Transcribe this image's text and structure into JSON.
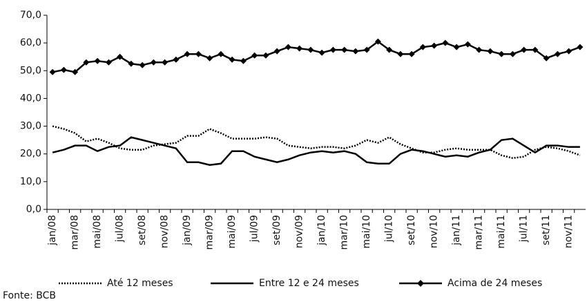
{
  "chart_data": {
    "type": "line",
    "categories": [
      "jan/08",
      null,
      "mar/08",
      null,
      "mai/08",
      null,
      "jul/08",
      null,
      "set/08",
      null,
      "nov/08",
      null,
      "jan/09",
      null,
      "mar/09",
      null,
      "mai/09",
      null,
      "jul/09",
      null,
      "set/09",
      null,
      "nov/09",
      null,
      "jan/10",
      null,
      "mar/10",
      null,
      "mai/10",
      null,
      "jul/10",
      null,
      "set/10",
      null,
      "nov/10",
      null,
      "jan/11",
      null,
      "mar/11",
      null,
      "mai/11",
      null,
      "jul/11",
      null,
      "set/11",
      null,
      "nov/11",
      null
    ],
    "series": [
      {
        "name": "Até 12 meses",
        "color": "#000000",
        "style": "dotted",
        "values": [
          30,
          29,
          27.5,
          24.5,
          25.5,
          24,
          22,
          21.5,
          21.5,
          23,
          23.5,
          24,
          26.5,
          26.5,
          29,
          27.5,
          25.5,
          25.5,
          25.5,
          26,
          25.5,
          23,
          22.5,
          22,
          22.5,
          22.5,
          22,
          23,
          25,
          24,
          26,
          23.5,
          22,
          20.5,
          20.5,
          21.5,
          22,
          21.5,
          21.5,
          21.5,
          19.5,
          18.5,
          19,
          21.5,
          22.5,
          22,
          21,
          19.5
        ]
      },
      {
        "name": "Entre 12 e 24 meses",
        "color": "#000000",
        "style": "solid",
        "values": [
          20.5,
          21.5,
          23,
          23,
          21,
          22.5,
          23,
          26,
          25,
          24,
          23,
          22,
          17,
          17,
          16,
          16.5,
          21,
          21,
          19,
          18,
          17,
          18,
          19.5,
          20.5,
          21,
          20.5,
          21,
          20,
          17,
          16.5,
          16.5,
          20,
          21.5,
          21,
          20,
          19,
          19.5,
          19,
          20.5,
          21.5,
          25,
          25.5,
          23,
          20.5,
          23,
          23,
          22.5,
          22.5
        ]
      },
      {
        "name": "Acima de 24 meses",
        "color": "#000000",
        "style": "solid",
        "marker": "diamond",
        "values": [
          49.5,
          50.3,
          49.5,
          53,
          53.5,
          53,
          55,
          52.5,
          52,
          53,
          53,
          54,
          56,
          56,
          54.5,
          56,
          54,
          53.5,
          55.5,
          55.5,
          57,
          58.5,
          58,
          57.5,
          56.5,
          57.5,
          57.5,
          57,
          57.5,
          60.5,
          57.5,
          56,
          56,
          58.5,
          59,
          60,
          58.5,
          59.5,
          57.5,
          57,
          56,
          56,
          57.5,
          57.5,
          54.5,
          56,
          57,
          58.5
        ]
      }
    ],
    "ylim": [
      0,
      70
    ],
    "yticks": [
      {
        "value": 0,
        "label": "0,0"
      },
      {
        "value": 10,
        "label": "10,0"
      },
      {
        "value": 20,
        "label": "20,0"
      },
      {
        "value": 30,
        "label": "30,0"
      },
      {
        "value": 40,
        "label": "40,0"
      },
      {
        "value": 50,
        "label": "50,0"
      },
      {
        "value": 60,
        "label": "60,0"
      },
      {
        "value": 70,
        "label": "70,0"
      }
    ],
    "grid": false,
    "legend": "bottom",
    "source": "Fonte: BCB"
  }
}
